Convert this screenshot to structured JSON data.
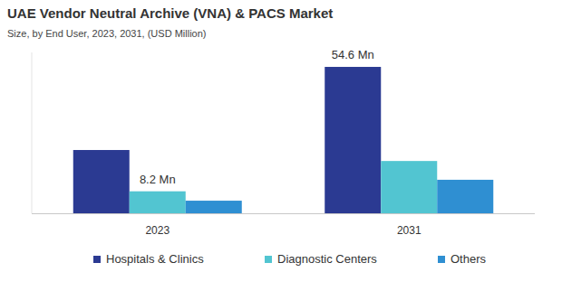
{
  "chart_data": {
    "type": "bar",
    "title": "UAE Vendor Neutral Archive (VNA) & PACS Market",
    "subtitle": "Size, by  End User, 2023, 2031, (USD Million)",
    "categories": [
      "2023",
      "2031"
    ],
    "series": [
      {
        "name": "Hospitals & Clinics",
        "color": "#2b3a92",
        "values": [
          23.6,
          54.6
        ],
        "value_labels": [
          null,
          "54.6 Mn"
        ]
      },
      {
        "name": "Diagnostic Centers",
        "color": "#52c5d1",
        "values": [
          8.2,
          19.5
        ],
        "value_labels": [
          "8.2 Mn",
          null
        ]
      },
      {
        "name": "Others",
        "color": "#2f8fd2",
        "values": [
          4.7,
          12.5
        ],
        "value_labels": [
          null,
          null
        ]
      }
    ],
    "ylim": [
      0,
      60
    ],
    "tick_labels": "x",
    "legend": "bottom"
  }
}
